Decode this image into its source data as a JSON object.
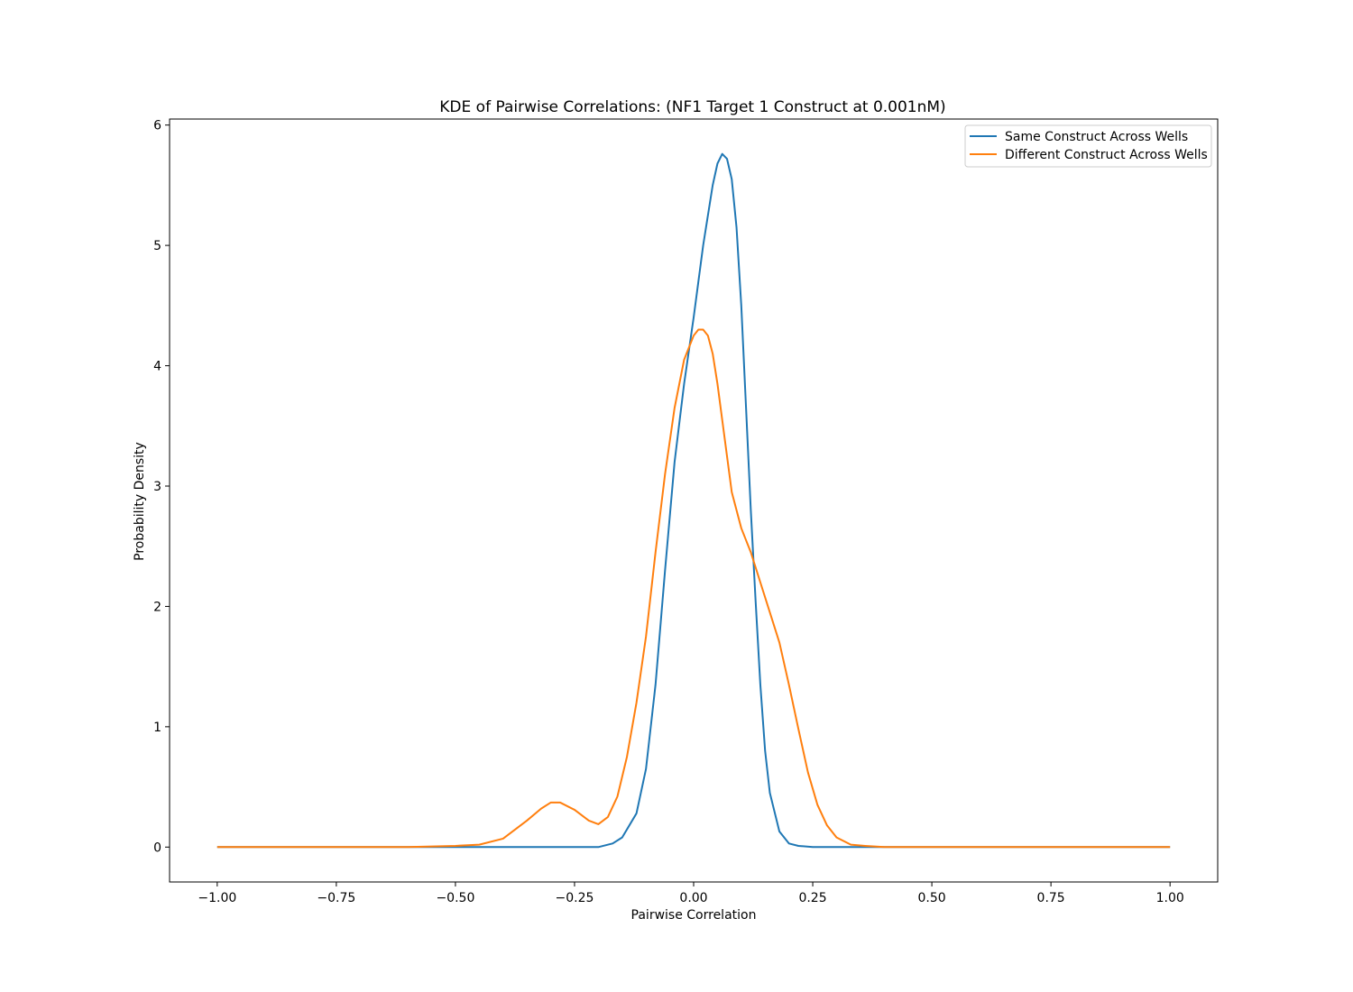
{
  "chart_data": {
    "type": "line",
    "title": "KDE of Pairwise Correlations: (NF1 Target 1 Construct at 0.001nM)",
    "xlabel": "Pairwise Correlation",
    "ylabel": "Probability Density",
    "xlim": [
      -1.1,
      1.1
    ],
    "ylim": [
      -0.29,
      6.05
    ],
    "xticks": [
      -1.0,
      -0.75,
      -0.5,
      -0.25,
      0.0,
      0.25,
      0.5,
      0.75,
      1.0
    ],
    "xtick_labels": [
      "−1.00",
      "−0.75",
      "−0.50",
      "−0.25",
      "0.00",
      "0.25",
      "0.50",
      "0.75",
      "1.00"
    ],
    "yticks": [
      0,
      1,
      2,
      3,
      4,
      5,
      6
    ],
    "ytick_labels": [
      "0",
      "1",
      "2",
      "3",
      "4",
      "5",
      "6"
    ],
    "grid": false,
    "legend_position": "top-right",
    "series": [
      {
        "name": "Same Construct Across Wells",
        "color": "#1f77b4",
        "x": [
          -1.0,
          -0.5,
          -0.2,
          -0.17,
          -0.15,
          -0.12,
          -0.1,
          -0.08,
          -0.06,
          -0.04,
          -0.02,
          0.0,
          0.02,
          0.04,
          0.05,
          0.06,
          0.07,
          0.08,
          0.09,
          0.1,
          0.11,
          0.12,
          0.13,
          0.14,
          0.15,
          0.16,
          0.18,
          0.2,
          0.22,
          0.25,
          0.3,
          0.4,
          1.0
        ],
        "y": [
          0.0,
          0.0,
          0.0,
          0.03,
          0.08,
          0.28,
          0.65,
          1.35,
          2.3,
          3.2,
          3.85,
          4.4,
          5.0,
          5.5,
          5.68,
          5.76,
          5.72,
          5.55,
          5.15,
          4.5,
          3.65,
          2.8,
          2.05,
          1.35,
          0.8,
          0.45,
          0.13,
          0.03,
          0.01,
          0.0,
          0.0,
          0.0,
          0.0
        ]
      },
      {
        "name": "Different Construct Across Wells",
        "color": "#ff7f0e",
        "x": [
          -1.0,
          -0.6,
          -0.5,
          -0.45,
          -0.4,
          -0.35,
          -0.32,
          -0.3,
          -0.28,
          -0.25,
          -0.22,
          -0.2,
          -0.18,
          -0.16,
          -0.14,
          -0.12,
          -0.1,
          -0.08,
          -0.06,
          -0.04,
          -0.02,
          0.0,
          0.01,
          0.02,
          0.03,
          0.04,
          0.05,
          0.06,
          0.08,
          0.1,
          0.12,
          0.14,
          0.16,
          0.18,
          0.2,
          0.22,
          0.24,
          0.26,
          0.28,
          0.3,
          0.33,
          0.36,
          0.4,
          0.5,
          1.0
        ],
        "y": [
          0.0,
          0.0,
          0.01,
          0.02,
          0.07,
          0.22,
          0.32,
          0.37,
          0.37,
          0.31,
          0.22,
          0.19,
          0.25,
          0.42,
          0.75,
          1.2,
          1.75,
          2.45,
          3.1,
          3.65,
          4.05,
          4.25,
          4.3,
          4.3,
          4.25,
          4.1,
          3.85,
          3.55,
          2.95,
          2.65,
          2.45,
          2.2,
          1.95,
          1.7,
          1.35,
          0.98,
          0.62,
          0.35,
          0.18,
          0.08,
          0.02,
          0.01,
          0.0,
          0.0,
          0.0
        ]
      }
    ]
  }
}
